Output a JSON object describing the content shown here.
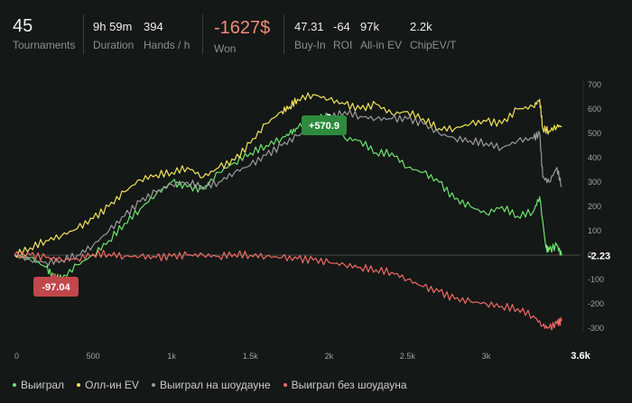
{
  "stats": {
    "tournaments": {
      "value": "45",
      "label": "Tournaments"
    },
    "duration": {
      "value": "9h 59m",
      "label": "Duration"
    },
    "hands": {
      "value": "394",
      "label": "Hands / h"
    },
    "won": {
      "value": "-1627$",
      "label": "Won"
    },
    "buyin": {
      "value": "47.31",
      "label": "Buy-In"
    },
    "roi": {
      "value": "-64",
      "label": "ROI"
    },
    "allin": {
      "value": "97k",
      "label": "All-in EV"
    },
    "chipev": {
      "value": "2.2k",
      "label": "ChipEV/T"
    }
  },
  "colors": {
    "green": "#6ee36e",
    "yellow": "#f2e35a",
    "gray": "#9a9a9a",
    "red": "#f06a64",
    "max_badge": "#2e8b3e",
    "min_badge": "#c0474a"
  },
  "annotations": {
    "max_label": "+570.9",
    "min_label": "-97.04",
    "current_label": "-2.23"
  },
  "legend": [
    {
      "name": "Выиграл",
      "color": "#6ee36e",
      "icon": "dot-icon"
    },
    {
      "name": "Олл-ин EV",
      "color": "#f2e35a",
      "icon": "dot-icon"
    },
    {
      "name": "Выиграл на шоудауне",
      "color": "#9a9a9a",
      "icon": "dot-icon"
    },
    {
      "name": "Выиграл без шоудауна",
      "color": "#f06a64",
      "icon": "dot-icon"
    }
  ],
  "chart_data": {
    "type": "line",
    "xlim": [
      0,
      3600
    ],
    "ylim": [
      -300,
      700
    ],
    "x_ticks": [
      "0",
      "500",
      "1k",
      "1.5k",
      "2k",
      "2.5k",
      "3k",
      "3.6k"
    ],
    "x_tick_values": [
      0,
      500,
      1000,
      1500,
      2000,
      2500,
      3000,
      3600
    ],
    "y_ticks": [
      "700",
      "600",
      "500",
      "400",
      "300",
      "200",
      "100",
      "0",
      "-100",
      "-200",
      "-300"
    ],
    "y_tick_values": [
      700,
      600,
      500,
      400,
      300,
      200,
      100,
      0,
      -100,
      -200,
      -300
    ],
    "grid": false,
    "legend_position": "bottom-left",
    "series": [
      {
        "name": "Выиграл",
        "color": "#6ee36e",
        "x": [
          0,
          100,
          200,
          250,
          300,
          400,
          500,
          600,
          700,
          800,
          900,
          1000,
          1100,
          1200,
          1300,
          1400,
          1500,
          1600,
          1700,
          1750,
          1800,
          1900,
          2000,
          2100,
          2200,
          2300,
          2400,
          2500,
          2600,
          2700,
          2800,
          2900,
          3000,
          3100,
          3200,
          3300,
          3340,
          3380,
          3400,
          3450,
          3480
        ],
        "y": [
          0,
          -10,
          -50,
          -90,
          -97,
          -40,
          0,
          60,
          130,
          190,
          250,
          300,
          280,
          270,
          340,
          380,
          420,
          450,
          480,
          500,
          520,
          560,
          571,
          480,
          470,
          420,
          420,
          360,
          340,
          300,
          230,
          200,
          170,
          200,
          160,
          180,
          240,
          30,
          20,
          40,
          -2
        ]
      },
      {
        "name": "Олл-ин EV",
        "color": "#f2e35a",
        "x": [
          0,
          100,
          200,
          300,
          400,
          500,
          600,
          700,
          800,
          900,
          1000,
          1100,
          1200,
          1300,
          1400,
          1500,
          1600,
          1700,
          1750,
          1800,
          1900,
          2000,
          2100,
          2200,
          2300,
          2400,
          2500,
          2600,
          2700,
          2800,
          2900,
          3000,
          3100,
          3200,
          3300,
          3340,
          3360,
          3400,
          3450,
          3480
        ],
        "y": [
          0,
          30,
          60,
          80,
          110,
          150,
          200,
          260,
          310,
          330,
          340,
          360,
          320,
          360,
          390,
          460,
          540,
          590,
          610,
          640,
          660,
          640,
          620,
          600,
          620,
          580,
          590,
          560,
          520,
          520,
          540,
          550,
          540,
          600,
          610,
          640,
          520,
          510,
          530,
          530
        ]
      },
      {
        "name": "Выиграл на шоудауне",
        "color": "#9a9a9a",
        "x": [
          0,
          100,
          200,
          300,
          400,
          500,
          600,
          700,
          800,
          900,
          1000,
          1100,
          1200,
          1300,
          1400,
          1500,
          1600,
          1700,
          1800,
          1900,
          2000,
          2100,
          2200,
          2300,
          2400,
          2500,
          2600,
          2700,
          2800,
          2900,
          3000,
          3100,
          3200,
          3300,
          3340,
          3360,
          3400,
          3450,
          3480
        ],
        "y": [
          0,
          -20,
          -30,
          -20,
          0,
          40,
          100,
          160,
          220,
          260,
          290,
          300,
          280,
          300,
          340,
          370,
          410,
          450,
          490,
          530,
          560,
          590,
          570,
          560,
          560,
          560,
          540,
          500,
          480,
          470,
          460,
          440,
          470,
          480,
          500,
          320,
          300,
          360,
          280
        ]
      },
      {
        "name": "Выиграл без шоудауна",
        "color": "#f06a64",
        "x": [
          0,
          100,
          200,
          300,
          400,
          500,
          600,
          700,
          800,
          900,
          1000,
          1100,
          1200,
          1300,
          1400,
          1500,
          1600,
          1700,
          1800,
          1900,
          2000,
          2100,
          2200,
          2300,
          2400,
          2500,
          2600,
          2700,
          2800,
          2900,
          3000,
          3100,
          3200,
          3300,
          3360,
          3400,
          3450,
          3480
        ],
        "y": [
          0,
          0,
          -10,
          -20,
          -15,
          5,
          5,
          -5,
          -5,
          -10,
          -5,
          0,
          0,
          -5,
          5,
          0,
          -5,
          -10,
          -15,
          -20,
          -30,
          -40,
          -50,
          -60,
          -70,
          -100,
          -130,
          -150,
          -180,
          -190,
          -200,
          -210,
          -220,
          -250,
          -290,
          -300,
          -280,
          -270
        ]
      }
    ]
  }
}
